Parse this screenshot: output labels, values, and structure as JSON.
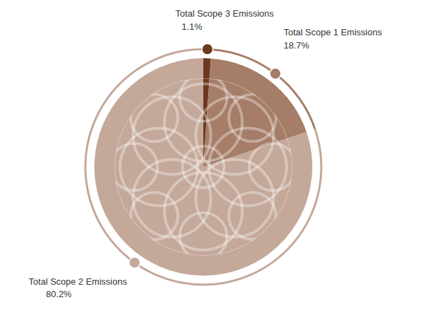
{
  "chart_data": {
    "type": "pie",
    "categories": [
      "Total Scope 3 Emissions",
      "Total Scope 1 Emissions",
      "Total Scope 2 Emissions"
    ],
    "values": [
      1.1,
      18.7,
      80.2
    ],
    "value_labels": [
      "1.1%",
      "18.7%",
      "80.2%"
    ],
    "colors": [
      "#6b3a1e",
      "#a67d68",
      "#c4a899"
    ],
    "data_labels": true
  }
}
